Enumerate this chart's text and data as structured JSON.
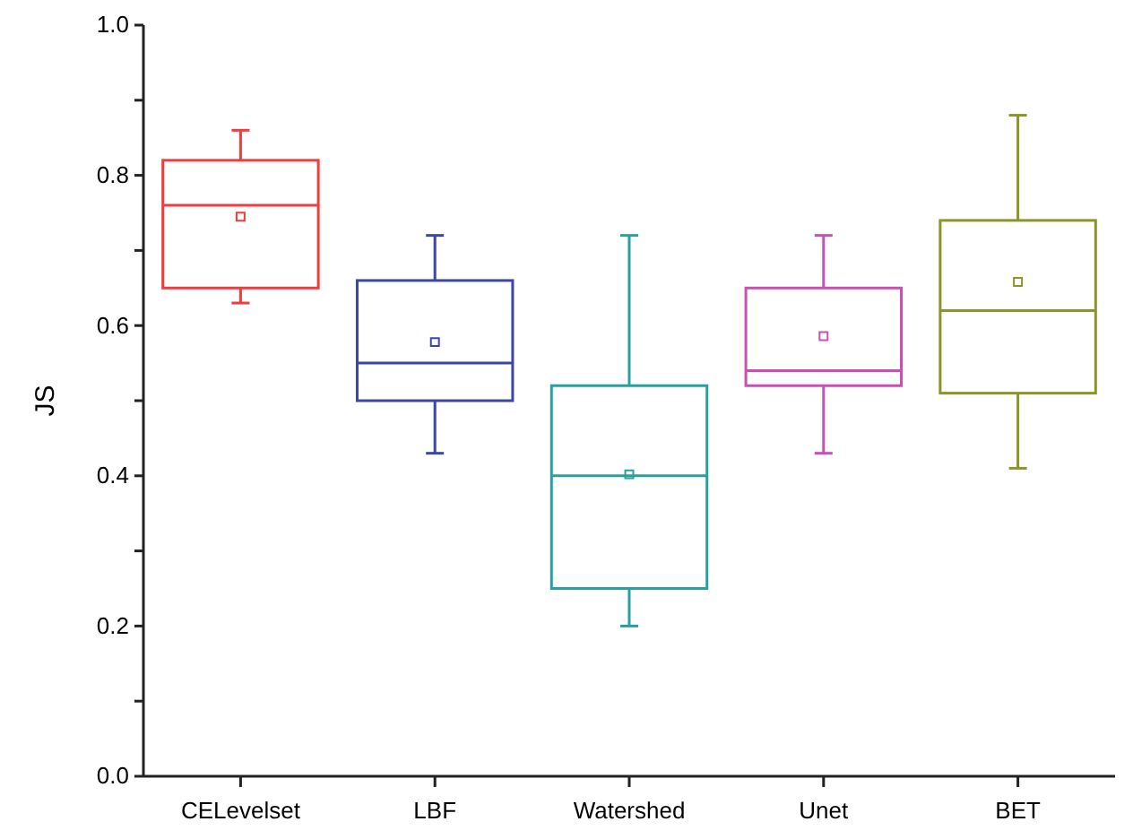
{
  "chart_data": {
    "type": "box",
    "ylabel": "JS",
    "categories": [
      "CELevelset",
      "LBF",
      "Watershed",
      "Unet",
      "BET"
    ],
    "colors": [
      "#f03c3c",
      "#3c46aa",
      "#28a0a0",
      "#c850b4",
      "#8c9628"
    ],
    "boxes": [
      {
        "low": 0.63,
        "q1": 0.65,
        "median": 0.76,
        "q3": 0.82,
        "high": 0.86,
        "mean": 0.745
      },
      {
        "low": 0.43,
        "q1": 0.5,
        "median": 0.55,
        "q3": 0.66,
        "high": 0.72,
        "mean": 0.578
      },
      {
        "low": 0.2,
        "q1": 0.25,
        "median": 0.4,
        "q3": 0.52,
        "high": 0.72,
        "mean": 0.402
      },
      {
        "low": 0.43,
        "q1": 0.52,
        "median": 0.54,
        "q3": 0.65,
        "high": 0.72,
        "mean": 0.586
      },
      {
        "low": 0.41,
        "q1": 0.51,
        "median": 0.62,
        "q3": 0.74,
        "high": 0.88,
        "mean": 0.658
      }
    ],
    "ylim": [
      0,
      1
    ],
    "yticks": [
      {
        "value": 0,
        "label": "0.0"
      },
      {
        "value": 0.1,
        "label": null
      },
      0.2,
      {
        "value": 0.3,
        "label": null
      },
      0.4,
      {
        "value": 0.5,
        "label": null
      },
      0.6,
      {
        "value": 0.7,
        "label": null
      },
      0.8,
      {
        "value": 0.9,
        "label": null
      },
      {
        "value": 1,
        "label": "1.0"
      }
    ],
    "grid": false,
    "marker": "square"
  }
}
